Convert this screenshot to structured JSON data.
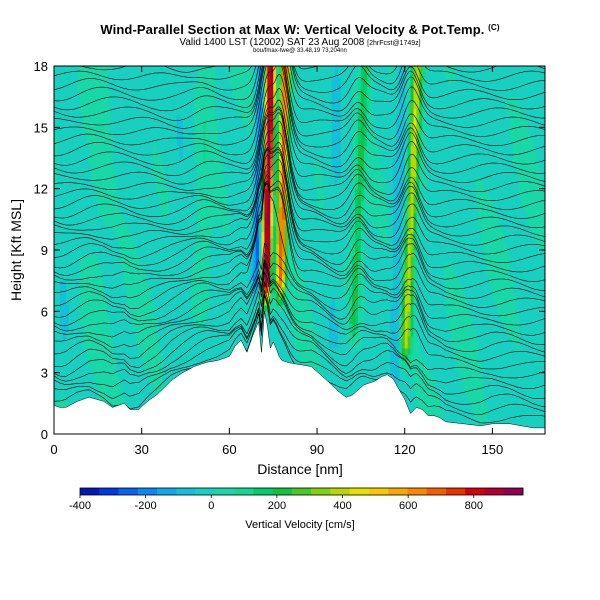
{
  "header": {
    "title": "Wind-Parallel Section at Max W: Vertical Velocity & Pot.Temp.",
    "title_copyright": "(C)",
    "subtitle_main": "Valid 1400 LST (12002) SAT 23 Aug 2008",
    "subtitle_tag": "[2hrFcst@1749z]",
    "subtitle_small": "bou/fmax-twe@ 33.48,19 73,204nn"
  },
  "chart_data": {
    "type": "heatmap",
    "title": "Wind-Parallel Section at Max W: Vertical Velocity & Pot.Temp.",
    "xlabel": "Distance [nm]",
    "ylabel": "Height [Kft MSL]",
    "xlim": [
      0,
      168
    ],
    "ylim": [
      0,
      18
    ],
    "x_ticks": [
      0,
      30,
      60,
      90,
      120,
      150
    ],
    "y_ticks": [
      0,
      3,
      6,
      9,
      12,
      15,
      18
    ],
    "colorbar": {
      "title": "Vertical Velocity [cm/s]",
      "range": [
        -400,
        950
      ],
      "tick_values": [
        -400,
        -200,
        0,
        200,
        400,
        600,
        800
      ],
      "tick_labels": [
        "-400",
        "-200",
        "0",
        "200",
        "400",
        "600",
        "800"
      ],
      "colors": [
        "#0018b8",
        "#0038e0",
        "#0a60f0",
        "#0a88f0",
        "#10a8e8",
        "#14c0d8",
        "#18d0c0",
        "#18d8a8",
        "#10d890",
        "#00cc70",
        "#14c040",
        "#48c828",
        "#80d010",
        "#b8d800",
        "#e8e000",
        "#f8c800",
        "#f8a800",
        "#f88800",
        "#f06000",
        "#e83000",
        "#d00010",
        "#b00030",
        "#900050"
      ]
    },
    "terrain_profile": {
      "x": [
        0,
        2,
        4,
        8,
        12,
        17,
        20,
        24,
        26,
        29,
        32,
        35,
        38,
        40,
        44,
        48,
        52,
        56,
        60,
        62,
        64,
        66,
        68,
        70,
        71,
        72,
        73,
        74,
        75,
        76,
        77,
        78,
        80,
        84,
        88,
        92,
        95,
        98,
        100,
        102,
        106,
        110,
        112,
        114,
        116,
        118,
        120,
        122,
        124,
        126,
        128,
        130,
        132,
        134,
        140,
        146,
        150,
        156,
        160,
        164,
        168
      ],
      "y": [
        1.4,
        1.3,
        1.3,
        1.6,
        1.8,
        1.6,
        1.3,
        1.5,
        1.2,
        1.2,
        1.6,
        1.9,
        2.3,
        2.6,
        3.0,
        3.3,
        3.5,
        3.6,
        3.8,
        4.3,
        4.6,
        4.0,
        4.8,
        5.5,
        4.0,
        6.0,
        5.3,
        4.2,
        4.5,
        4.2,
        3.8,
        3.6,
        3.5,
        3.4,
        3.3,
        2.8,
        2.4,
        2.0,
        1.8,
        1.9,
        2.4,
        2.6,
        2.8,
        2.9,
        2.7,
        2.2,
        1.7,
        1.0,
        1.3,
        1.2,
        0.9,
        0.9,
        0.8,
        0.6,
        0.5,
        0.4,
        0.5,
        0.5,
        0.4,
        0.3,
        0.3
      ]
    },
    "updraft_cores": [
      {
        "x": 73.0,
        "w": 2.0,
        "peak_cms": 950,
        "from_kft": 5.8,
        "to_kft": 18
      },
      {
        "x": 78.0,
        "w": 1.6,
        "peak_cms": 700,
        "from_kft": 6.0,
        "to_kft": 18
      },
      {
        "x": 122.0,
        "w": 1.8,
        "peak_cms": 420,
        "from_kft": 3.0,
        "to_kft": 18
      },
      {
        "x": 104.0,
        "w": 1.6,
        "peak_cms": 200,
        "from_kft": 4.0,
        "to_kft": 18
      },
      {
        "x": 51.0,
        "w": 2.5,
        "peak_cms": 50,
        "from_kft": 5.0,
        "to_kft": 18
      },
      {
        "x": 15.0,
        "w": 5.0,
        "peak_cms": 30,
        "from_kft": 3.0,
        "to_kft": 18
      }
    ],
    "downdraft_cores": [
      {
        "x": 70.0,
        "w": 1.6,
        "peak_cms": -280,
        "from_kft": 6.0,
        "to_kft": 18
      },
      {
        "x": 75.0,
        "w": 0.8,
        "peak_cms": -200,
        "from_kft": 6.0,
        "to_kft": 18
      },
      {
        "x": 118.0,
        "w": 2.2,
        "peak_cms": -90,
        "from_kft": 2.0,
        "to_kft": 18
      },
      {
        "x": 96.0,
        "w": 3.0,
        "peak_cms": -50,
        "from_kft": 3.0,
        "to_kft": 18
      },
      {
        "x": 43.0,
        "w": 4.0,
        "peak_cms": -40,
        "from_kft": 4.0,
        "to_kft": 18
      },
      {
        "x": 4.0,
        "w": 3.0,
        "peak_cms": -30,
        "from_kft": 2.0,
        "to_kft": 18
      }
    ]
  }
}
